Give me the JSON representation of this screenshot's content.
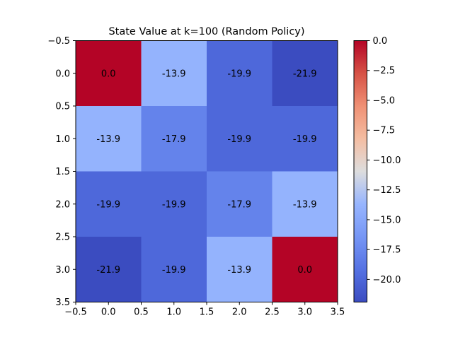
{
  "chart_data": {
    "type": "heatmap",
    "title": "State Value at k=100 (Random Policy)",
    "xlabel": "",
    "ylabel": "",
    "colormap": "coolwarm",
    "xlim": [
      -0.5,
      3.5
    ],
    "ylim": [
      3.5,
      -0.5
    ],
    "xticks": [
      "−0.5",
      "0.0",
      "0.5",
      "1.0",
      "1.5",
      "2.0",
      "2.5",
      "3.0",
      "3.5"
    ],
    "yticks": [
      "−0.5",
      "0.0",
      "0.5",
      "1.0",
      "1.5",
      "2.0",
      "2.5",
      "3.0",
      "3.5"
    ],
    "values": [
      [
        0.0,
        -13.9,
        -19.9,
        -21.9
      ],
      [
        -13.9,
        -17.9,
        -19.9,
        -19.9
      ],
      [
        -19.9,
        -19.9,
        -17.9,
        -13.9
      ],
      [
        -21.9,
        -19.9,
        -13.9,
        0.0
      ]
    ],
    "cell_labels": [
      [
        "0.0",
        "-13.9",
        "-19.9",
        "-21.9"
      ],
      [
        "-13.9",
        "-17.9",
        "-19.9",
        "-19.9"
      ],
      [
        "-19.9",
        "-19.9",
        "-17.9",
        "-13.9"
      ],
      [
        "-21.9",
        "-19.9",
        "-13.9",
        "0.0"
      ]
    ],
    "colorbar": {
      "vmin": -21.9,
      "vmax": 0.0,
      "ticks": [
        0.0,
        -2.5,
        -5.0,
        -7.5,
        -10.0,
        -12.5,
        -15.0,
        -17.5,
        -20.0
      ],
      "tick_labels": [
        "0.0",
        "−2.5",
        "−5.0",
        "−7.5",
        "−10.0",
        "−12.5",
        "−15.0",
        "−17.5",
        "−20.0"
      ]
    },
    "grid": false
  }
}
